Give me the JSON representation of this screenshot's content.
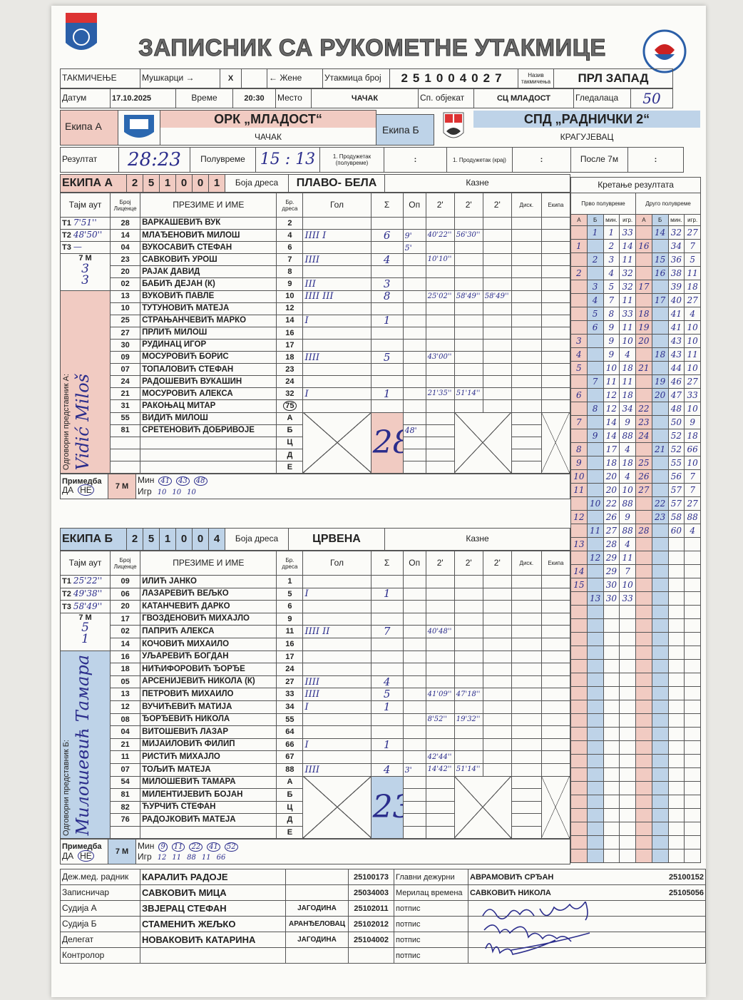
{
  "header": {
    "title": "ЗАПИСНИК СА РУКОМЕТНЕ УТАКМИЦЕ",
    "left_logo": "РСС",
    "right_logo": "Рукометни савез Србије"
  },
  "info": {
    "competition_label": "ТАКМИЧЕЊЕ",
    "men_label": "Мушкарци →",
    "men_mark": "X",
    "women_label": "← Жене",
    "match_no_label": "Утакмица број",
    "match_no": [
      "2",
      "5",
      "1",
      "0",
      "0",
      "4",
      "0",
      "2",
      "7"
    ],
    "comp_name_label": "Назив такмичења",
    "comp_name": "ПРЛ ЗАПАД",
    "date_label": "Датум",
    "date": "17.10.2025",
    "time_label": "Време",
    "time": "20:30",
    "place_label": "Место",
    "place": "ЧАЧАК",
    "venue_label": "Сп. објекат",
    "venue": "СЦ МЛАДОСТ",
    "spectators_label": "Гледалаца",
    "spectators": "50"
  },
  "teams": {
    "a_label": "Екипа А",
    "a_name": "ОРК „МЛАДОСТ“",
    "a_city": "ЧАЧАК",
    "b_label": "Екипа Б",
    "b_name": "СПД „РАДНИЧКИ 2“",
    "b_city": "КРАГУЈЕВАЦ"
  },
  "result": {
    "label": "Резултат",
    "final": "28:23",
    "half_label": "Полувреме",
    "half": "15 : 13",
    "ot1_half_label": "1. Продужетак (полувреме)",
    "ot1_half": ":",
    "ot1_end_label": "1. Продужетак (крај)",
    "ot1_end": ":",
    "after7m_label": "После 7м",
    "after7m": ":"
  },
  "columns": {
    "timeout": "Тајм аут",
    "license": "Број Лиценце",
    "name": "ПРЕЗИМЕ И ИМЕ",
    "jersey": "Бр. дреса",
    "goal": "Гол",
    "sum": "Σ",
    "warn": "Оп",
    "two": "2'",
    "disq": "Диск.",
    "team": "Екипа",
    "penalties": "Казне",
    "jersey_color": "Боја дреса",
    "seven_m": "7 М",
    "remark": "Примедба",
    "yes": "ДА",
    "no": "НЕ",
    "min": "Мин",
    "igr": "Игр"
  },
  "team_a": {
    "title": "ЕКИПА А",
    "code": [
      "2",
      "5",
      "1",
      "0",
      "0",
      "1"
    ],
    "jersey_color": "ПЛАВО- БЕЛА",
    "timeouts": [
      {
        "label": "T1",
        "value": "7'51''"
      },
      {
        "label": "T2",
        "value": "48'50''"
      },
      {
        "label": "T3",
        "value": "—"
      }
    ],
    "seven_m": [
      "3",
      "3"
    ],
    "rep_label": "Одговорни представник А:",
    "rep": "Vidić Miloš",
    "remark": "НЕ",
    "seven_m_min": [
      "41",
      "43",
      "48"
    ],
    "seven_m_igr": [
      "10",
      "10",
      "10"
    ],
    "total": "28",
    "players": [
      {
        "lic": "28",
        "name": "ВАРКАШЕВИЋ ВУК",
        "no": "2",
        "tally": "",
        "sum": "",
        "warn": "",
        "p": [
          "",
          "",
          ""
        ]
      },
      {
        "lic": "14",
        "name": "МЛАЂЕНОВИЋ МИЛОШ",
        "no": "4",
        "tally": "IIII I",
        "sum": "6",
        "warn": "9'",
        "p": [
          "40'22''",
          "56'30''",
          ""
        ]
      },
      {
        "lic": "04",
        "name": "ВУКОСАВИЋ СТЕФАН",
        "no": "6",
        "tally": "",
        "sum": "",
        "warn": "5'",
        "p": [
          "",
          "",
          ""
        ]
      },
      {
        "lic": "23",
        "name": "САВКОВИЋ УРОШ",
        "no": "7",
        "tally": "IIII",
        "sum": "4",
        "warn": "",
        "p": [
          "10'10''",
          "",
          ""
        ]
      },
      {
        "lic": "20",
        "name": "РАЈАК ДАВИД",
        "no": "8",
        "tally": "",
        "sum": "",
        "warn": "",
        "p": [
          "",
          "",
          ""
        ]
      },
      {
        "lic": "02",
        "name": "БАБИЋ ДЕЈАН (К)",
        "no": "9",
        "tally": "III",
        "sum": "3",
        "warn": "",
        "p": [
          "",
          "",
          ""
        ]
      },
      {
        "lic": "13",
        "name": "ВУКОВИЋ ПАВЛЕ",
        "no": "10",
        "tally": "IIII III",
        "sum": "8",
        "warn": "",
        "p": [
          "25'02''",
          "58'49''",
          "58'49''"
        ]
      },
      {
        "lic": "10",
        "name": "ТУТУНОВИЋ МАТЕЈА",
        "no": "12",
        "tally": "",
        "sum": "",
        "warn": "",
        "p": [
          "",
          "",
          ""
        ]
      },
      {
        "lic": "25",
        "name": "СТРАЊАНЧЕВИЋ МАРКО",
        "no": "14",
        "tally": "I",
        "sum": "1",
        "warn": "",
        "p": [
          "",
          "",
          ""
        ]
      },
      {
        "lic": "27",
        "name": "ПРЛИЋ МИЛОШ",
        "no": "16",
        "tally": "",
        "sum": "",
        "warn": "",
        "p": [
          "",
          "",
          ""
        ]
      },
      {
        "lic": "30",
        "name": "РУДИНАЦ ИГОР",
        "no": "17",
        "tally": "",
        "sum": "",
        "warn": "",
        "p": [
          "",
          "",
          ""
        ]
      },
      {
        "lic": "09",
        "name": "МОСУРОВИЋ БОРИС",
        "no": "18",
        "tally": "IIII",
        "sum": "5",
        "warn": "",
        "p": [
          "43'00''",
          "",
          ""
        ]
      },
      {
        "lic": "07",
        "name": "ТОПАЛОВИЋ СТЕФАН",
        "no": "23",
        "tally": "",
        "sum": "",
        "warn": "",
        "p": [
          "",
          "",
          ""
        ]
      },
      {
        "lic": "24",
        "name": "РАДОШЕВИЋ ВУКАШИН",
        "no": "24",
        "tally": "",
        "sum": "",
        "warn": "",
        "p": [
          "",
          "",
          ""
        ]
      },
      {
        "lic": "21",
        "name": "МОСУРОВИЋ АЛЕКСА",
        "no": "32",
        "tally": "I",
        "sum": "1",
        "warn": "",
        "p": [
          "21'35''",
          "51'14''",
          ""
        ]
      },
      {
        "lic": "31",
        "name": "РАКОЊАЦ МИТАР",
        "no": "75",
        "tally": "",
        "sum": "",
        "warn": "",
        "p": [
          "",
          "",
          ""
        ]
      }
    ],
    "officials": [
      {
        "lic": "55",
        "name": "ВИДИЋ МИЛОШ",
        "no": "А",
        "warn": ""
      },
      {
        "lic": "81",
        "name": "СРЕТЕНОВИЋ ДОБРИВОЈЕ",
        "no": "Б",
        "warn": "48'"
      },
      {
        "lic": "",
        "name": "",
        "no": "Ц",
        "warn": ""
      },
      {
        "lic": "",
        "name": "",
        "no": "Д",
        "warn": ""
      },
      {
        "lic": "",
        "name": "",
        "no": "Е",
        "warn": ""
      }
    ]
  },
  "team_b": {
    "title": "ЕКИПА Б",
    "code": [
      "2",
      "5",
      "1",
      "0",
      "0",
      "4"
    ],
    "jersey_color": "ЦРВЕНА",
    "timeouts": [
      {
        "label": "T1",
        "value": "25'22''"
      },
      {
        "label": "T2",
        "value": "49'38''"
      },
      {
        "label": "T3",
        "value": "58'49''"
      }
    ],
    "seven_m": [
      "5",
      "1"
    ],
    "rep_label": "Одговорни представник Б:",
    "rep": "Милошевић Тамара",
    "remark": "НЕ",
    "seven_m_min": [
      "9",
      "11",
      "22",
      "41",
      "52"
    ],
    "seven_m_igr": [
      "12",
      "11",
      "88",
      "11",
      "66"
    ],
    "total": "23",
    "players": [
      {
        "lic": "09",
        "name": "ИЛИЋ ЈАНКО",
        "no": "1",
        "tally": "",
        "sum": "",
        "warn": "",
        "p": [
          "",
          "",
          ""
        ]
      },
      {
        "lic": "06",
        "name": "ЛАЗАРЕВИЋ ВЕЉКО",
        "no": "5",
        "tally": "I",
        "sum": "1",
        "warn": "",
        "p": [
          "",
          "",
          ""
        ]
      },
      {
        "lic": "20",
        "name": "КАТАНЧЕВИЋ ДАРКО",
        "no": "6",
        "tally": "",
        "sum": "",
        "warn": "",
        "p": [
          "",
          "",
          ""
        ]
      },
      {
        "lic": "17",
        "name": "ГВОЗДЕНОВИЋ МИХАЈЛО",
        "no": "9",
        "tally": "",
        "sum": "",
        "warn": "",
        "p": [
          "",
          "",
          ""
        ]
      },
      {
        "lic": "02",
        "name": "ПАПРИЋ АЛЕКСА",
        "no": "11",
        "tally": "IIII II",
        "sum": "7",
        "warn": "",
        "p": [
          "40'48''",
          "",
          ""
        ]
      },
      {
        "lic": "14",
        "name": "КОЧОВИЋ МИХАИЛО",
        "no": "16",
        "tally": "",
        "sum": "",
        "warn": "",
        "p": [
          "",
          "",
          ""
        ]
      },
      {
        "lic": "16",
        "name": "УЉАРЕВИЋ БОГДАН",
        "no": "17",
        "tally": "",
        "sum": "",
        "warn": "",
        "p": [
          "",
          "",
          ""
        ]
      },
      {
        "lic": "18",
        "name": "НИЋИФОРОВИЋ ЂОРЂЕ",
        "no": "24",
        "tally": "",
        "sum": "",
        "warn": "",
        "p": [
          "",
          "",
          ""
        ]
      },
      {
        "lic": "05",
        "name": "АРСЕНИЈЕВИЋ НИКОЛА (К)",
        "no": "27",
        "tally": "IIII",
        "sum": "4",
        "warn": "",
        "p": [
          "",
          "",
          ""
        ]
      },
      {
        "lic": "13",
        "name": "ПЕТРОВИЋ МИХАИЛО",
        "no": "33",
        "tally": "IIII",
        "sum": "5",
        "warn": "",
        "p": [
          "41'09''",
          "47'18''",
          ""
        ]
      },
      {
        "lic": "12",
        "name": "ВУЧИЋЕВИЋ МАТИЈА",
        "no": "34",
        "tally": "I",
        "sum": "1",
        "warn": "",
        "p": [
          "",
          "",
          ""
        ]
      },
      {
        "lic": "08",
        "name": "ЂОРЂЕВИЋ НИКОЛА",
        "no": "55",
        "tally": "",
        "sum": "",
        "warn": "",
        "p": [
          "8'52''",
          "19'32''",
          ""
        ]
      },
      {
        "lic": "04",
        "name": "ВИТОШЕВИЋ ЛАЗАР",
        "no": "64",
        "tally": "",
        "sum": "",
        "warn": "",
        "p": [
          "",
          "",
          ""
        ]
      },
      {
        "lic": "21",
        "name": "МИЈАИЛОВИЋ ФИЛИП",
        "no": "66",
        "tally": "I",
        "sum": "1",
        "warn": "",
        "p": [
          "",
          "",
          ""
        ]
      },
      {
        "lic": "11",
        "name": "РИСТИЋ МИХАЈЛО",
        "no": "67",
        "tally": "",
        "sum": "",
        "warn": "",
        "p": [
          "42'44''",
          "",
          ""
        ]
      },
      {
        "lic": "07",
        "name": "ТОЉИЋ МАТЕЈА",
        "no": "88",
        "tally": "IIII",
        "sum": "4",
        "warn": "3'",
        "p": [
          "14'42''",
          "51'14''",
          ""
        ]
      }
    ],
    "officials": [
      {
        "lic": "54",
        "name": "МИЛОШЕВИЋ ТАМАРА",
        "no": "А",
        "warn": ""
      },
      {
        "lic": "81",
        "name": "МИЛЕНТИЈЕВИЋ БОЈАН",
        "no": "Б",
        "warn": ""
      },
      {
        "lic": "82",
        "name": "ЋУРЧИЋ СТЕФАН",
        "no": "Ц",
        "warn": ""
      },
      {
        "lic": "76",
        "name": "РАДОЈКОВИЋ МАТЕЈА",
        "no": "Д",
        "warn": ""
      },
      {
        "lic": "",
        "name": "",
        "no": "Е",
        "warn": ""
      }
    ]
  },
  "score_progress": {
    "title": "Кретање резултата",
    "first_half": "Прво полувреме",
    "second_half": "Друго полувреме",
    "cols": [
      "А",
      "Б",
      "мин.",
      "игр.",
      "А",
      "Б",
      "мин.",
      "игр."
    ],
    "first": [
      [
        "",
        "1",
        "1",
        "33"
      ],
      [
        "1",
        "",
        "2",
        "14"
      ],
      [
        "",
        "2",
        "3",
        "11"
      ],
      [
        "2",
        "",
        "4",
        "32"
      ],
      [
        "",
        "3",
        "5",
        "32"
      ],
      [
        "",
        "4",
        "7",
        "11"
      ],
      [
        "",
        "5",
        "8",
        "33"
      ],
      [
        "",
        "6",
        "9",
        "11"
      ],
      [
        "3",
        "",
        "9",
        "10"
      ],
      [
        "4",
        "",
        "9",
        "4"
      ],
      [
        "5",
        "",
        "10",
        "18"
      ],
      [
        "",
        "7",
        "11",
        "11"
      ],
      [
        "6",
        "",
        "12",
        "18"
      ],
      [
        "",
        "8",
        "12",
        "34"
      ],
      [
        "7",
        "",
        "14",
        "9"
      ],
      [
        "",
        "9",
        "14",
        "88"
      ],
      [
        "8",
        "",
        "17",
        "4"
      ],
      [
        "9",
        "",
        "18",
        "18"
      ],
      [
        "10",
        "",
        "20",
        "4"
      ],
      [
        "11",
        "",
        "20",
        "10"
      ],
      [
        "",
        "10",
        "22",
        "88"
      ],
      [
        "12",
        "",
        "26",
        "9"
      ],
      [
        "",
        "11",
        "27",
        "88"
      ],
      [
        "13",
        "",
        "28",
        "4"
      ],
      [
        "",
        "12",
        "29",
        "11"
      ],
      [
        "14",
        "",
        "29",
        "7"
      ],
      [
        "15",
        "",
        "30",
        "10"
      ],
      [
        "",
        "13",
        "30",
        "33"
      ]
    ],
    "second": [
      [
        "",
        "14",
        "32",
        "27"
      ],
      [
        "16",
        "",
        "34",
        "7"
      ],
      [
        "",
        "15",
        "36",
        "5"
      ],
      [
        "",
        "16",
        "38",
        "11"
      ],
      [
        "17",
        "",
        "39",
        "18"
      ],
      [
        "",
        "17",
        "40",
        "27"
      ],
      [
        "18",
        "",
        "41",
        "4"
      ],
      [
        "19",
        "",
        "41",
        "10"
      ],
      [
        "20",
        "",
        "43",
        "10"
      ],
      [
        "",
        "18",
        "43",
        "11"
      ],
      [
        "21",
        "",
        "44",
        "10"
      ],
      [
        "",
        "19",
        "46",
        "27"
      ],
      [
        "",
        "20",
        "47",
        "33"
      ],
      [
        "22",
        "",
        "48",
        "10"
      ],
      [
        "23",
        "",
        "50",
        "9"
      ],
      [
        "24",
        "",
        "52",
        "18"
      ],
      [
        "",
        "21",
        "52",
        "66"
      ],
      [
        "25",
        "",
        "55",
        "10"
      ],
      [
        "26",
        "",
        "56",
        "7"
      ],
      [
        "27",
        "",
        "57",
        "7"
      ],
      [
        "",
        "22",
        "57",
        "27"
      ],
      [
        "",
        "23",
        "58",
        "88"
      ],
      [
        "28",
        "",
        "60",
        "4"
      ]
    ]
  },
  "staff": [
    {
      "role": "Деж.мед. радник",
      "name": "КАРАЛИЋ РАДОЈЕ",
      "city": "",
      "lic": "25100173",
      "role2": "Главни дежурни",
      "name2": "АВРАМОВИЋ СРЂАН",
      "lic2": "25100152"
    },
    {
      "role": "Записничар",
      "name": "САВКОВИЋ МИЦА",
      "city": "",
      "lic": "25034003",
      "role2": "Мерилац времена",
      "name2": "САВКОВИЋ НИКОЛА",
      "lic2": "25105056"
    },
    {
      "role": "Судија А",
      "name": "ЗВЈЕРАЦ СТЕФАН",
      "city": "ЈАГОДИНА",
      "lic": "25102011",
      "role2": "потпис",
      "name2": "",
      "lic2": ""
    },
    {
      "role": "Судија Б",
      "name": "СТАМЕНИЋ ЖЕЉКО",
      "city": "АРАНЂЕЛОВАЦ",
      "lic": "25102012",
      "role2": "потпис",
      "name2": "",
      "lic2": ""
    },
    {
      "role": "Делегат",
      "name": "НОВАКОВИЋ КАТАРИНА",
      "city": "ЈАГОДИНА",
      "lic": "25104002",
      "role2": "потпис",
      "name2": "",
      "lic2": ""
    },
    {
      "role": "Контролор",
      "name": "",
      "city": "",
      "lic": "",
      "role2": "потпис",
      "name2": "",
      "lic2": ""
    }
  ],
  "colors": {
    "team_a": "#f1cbc2",
    "team_b": "#bed3e8",
    "ink": "#2b2d8c"
  }
}
